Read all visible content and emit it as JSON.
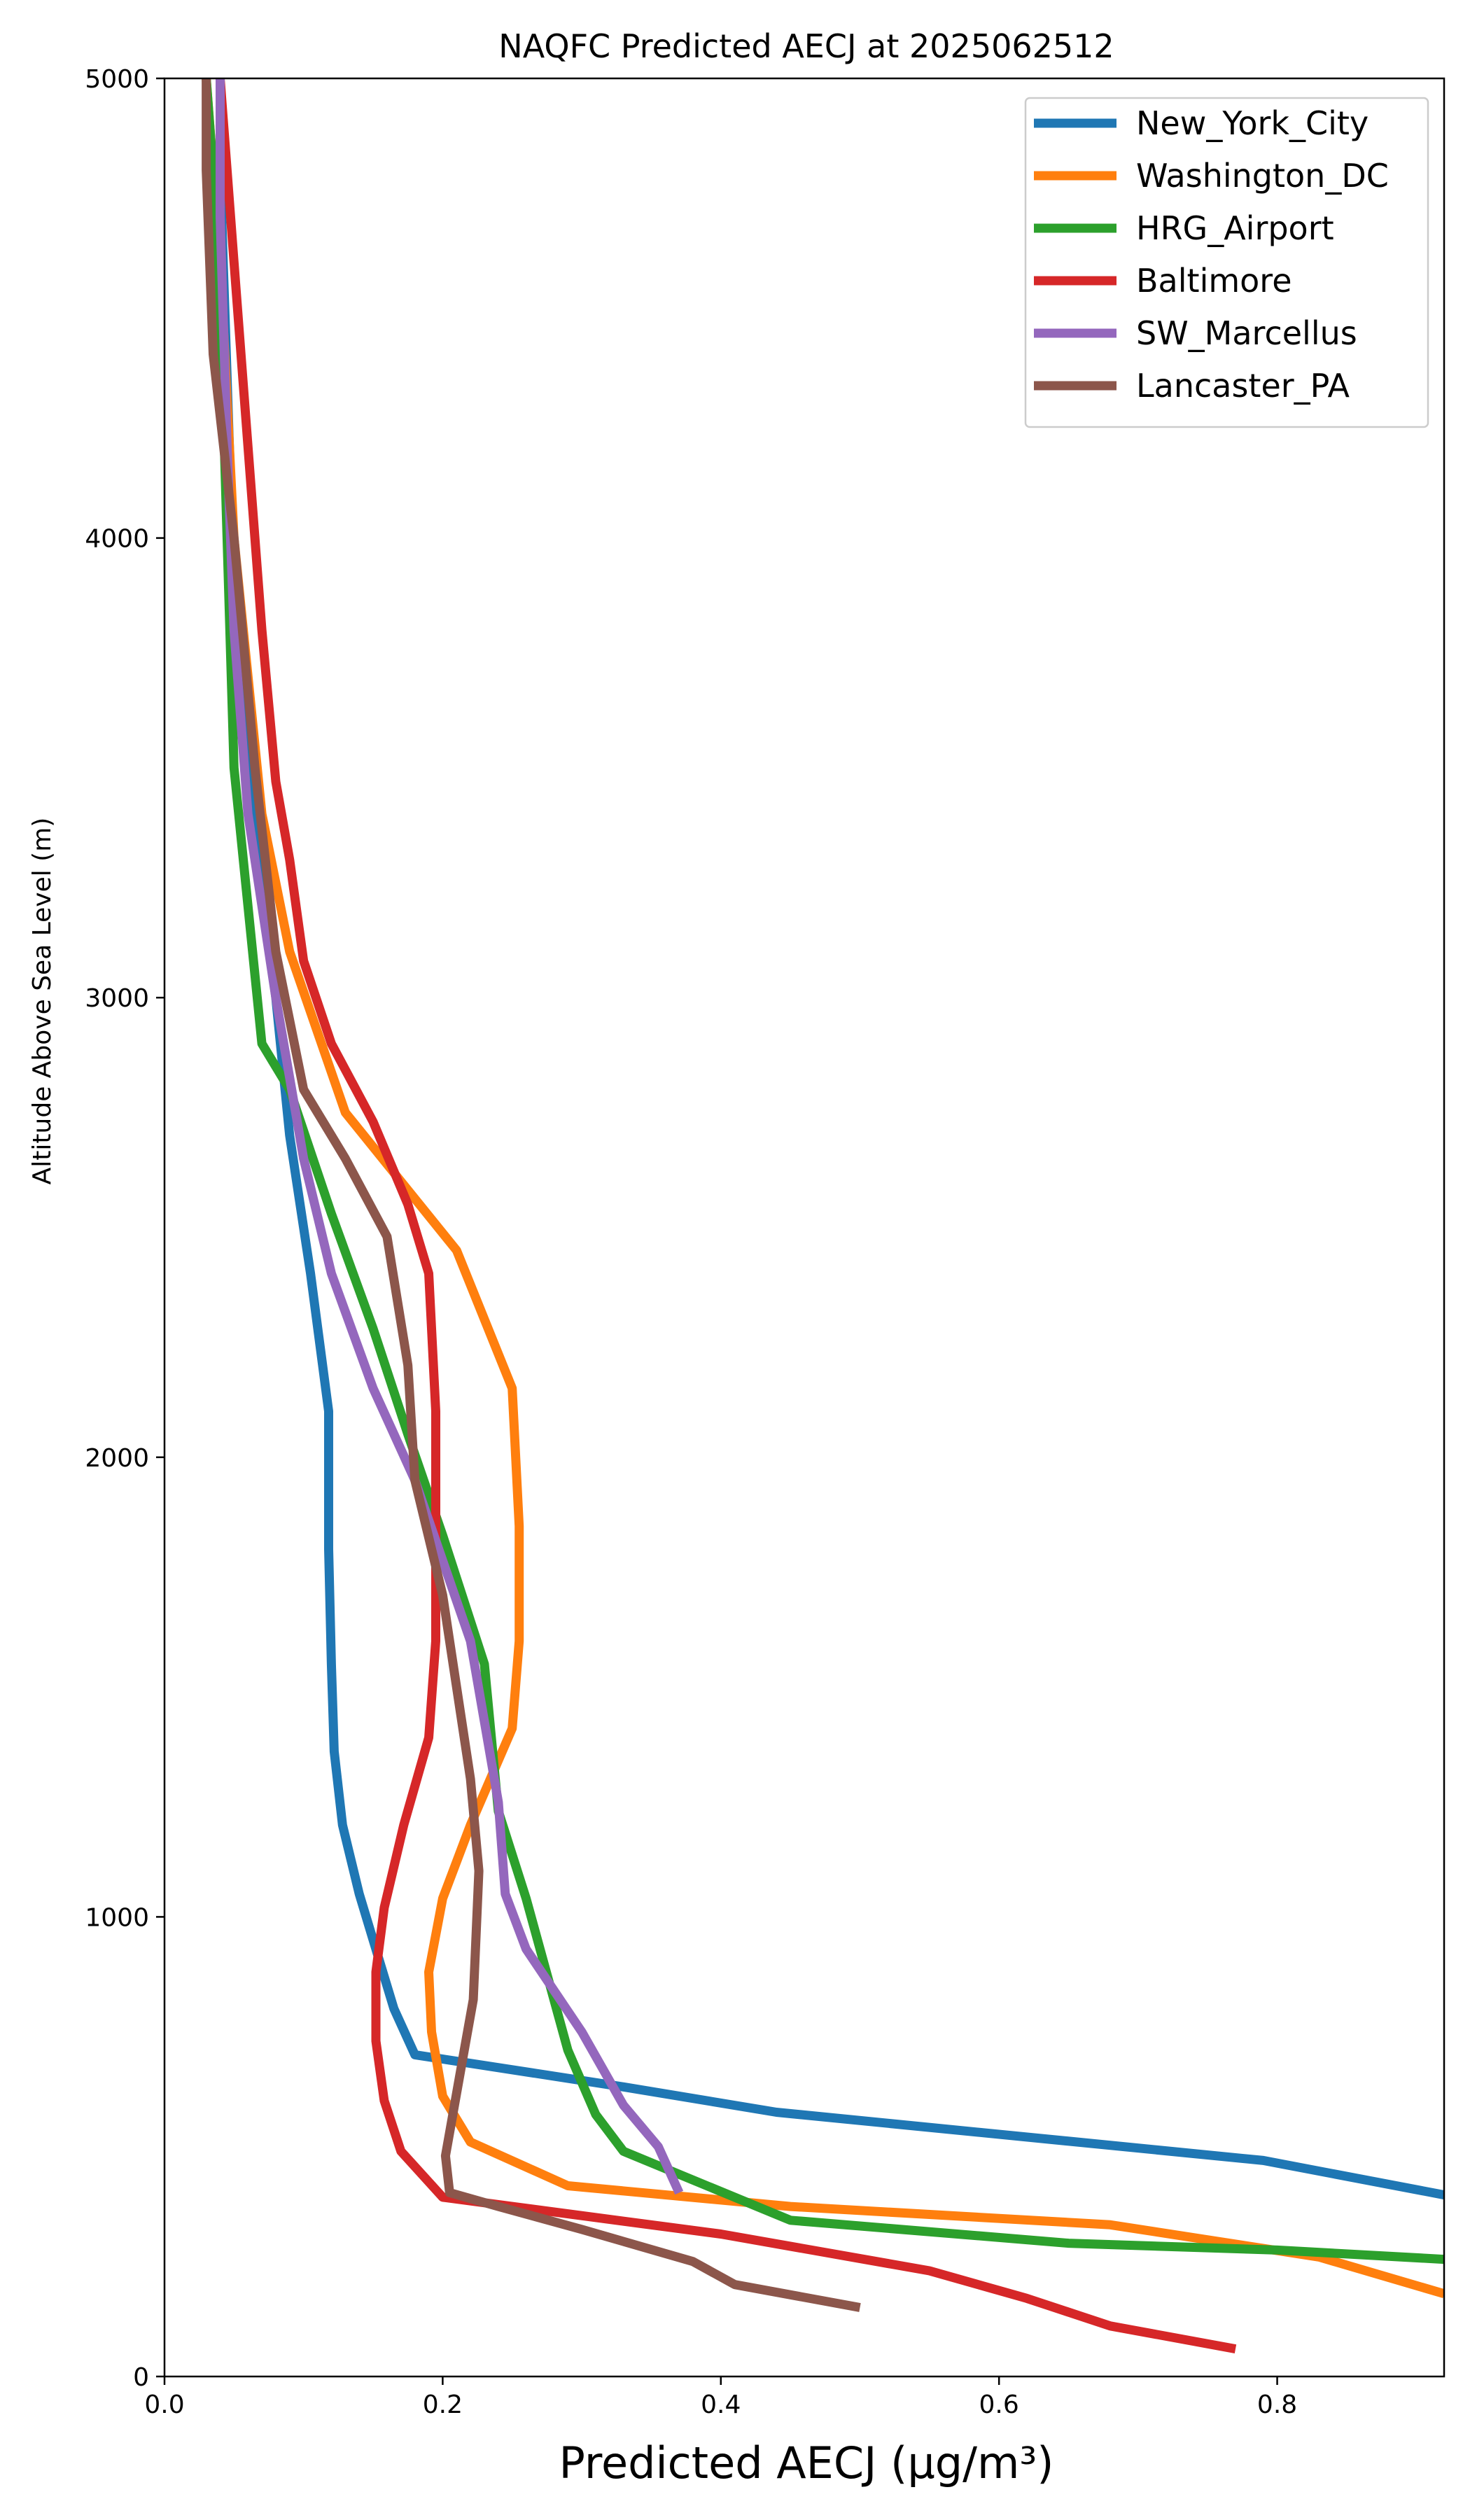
{
  "chart_data": {
    "type": "line",
    "title": "NAQFC Predicted AECJ at 2025062512",
    "xlabel": "Predicted AECJ (μg/m³)",
    "ylabel": "Altitude Above Sea Level (m)",
    "xlim": [
      0.0,
      0.92
    ],
    "ylim": [
      0,
      5000
    ],
    "xticks": [
      "0.0",
      "0.2",
      "0.4",
      "0.6",
      "0.8"
    ],
    "yticks": [
      "0",
      "1000",
      "2000",
      "3000",
      "4000",
      "5000"
    ],
    "grid": false,
    "legend_position": "top-right",
    "series": [
      {
        "name": "New_York_City",
        "color": "#1f77b4",
        "points": [
          [
            0.92,
            395
          ],
          [
            0.79,
            470
          ],
          [
            0.44,
            575
          ],
          [
            0.33,
            630
          ],
          [
            0.18,
            700
          ],
          [
            0.165,
            800
          ],
          [
            0.15,
            950
          ],
          [
            0.14,
            1050
          ],
          [
            0.128,
            1200
          ],
          [
            0.122,
            1360
          ],
          [
            0.12,
            1550
          ],
          [
            0.118,
            1800
          ],
          [
            0.118,
            2100
          ],
          [
            0.105,
            2400
          ],
          [
            0.09,
            2700
          ],
          [
            0.08,
            3000
          ],
          [
            0.06,
            3500
          ],
          [
            0.05,
            3900
          ],
          [
            0.04,
            4800
          ],
          [
            0.04,
            5000
          ]
        ]
      },
      {
        "name": "Washington_DC",
        "color": "#ff7f0e",
        "points": [
          [
            0.92,
            180
          ],
          [
            0.83,
            260
          ],
          [
            0.68,
            330
          ],
          [
            0.45,
            370
          ],
          [
            0.29,
            415
          ],
          [
            0.22,
            510
          ],
          [
            0.2,
            610
          ],
          [
            0.192,
            750
          ],
          [
            0.19,
            880
          ],
          [
            0.2,
            1040
          ],
          [
            0.22,
            1200
          ],
          [
            0.25,
            1410
          ],
          [
            0.255,
            1600
          ],
          [
            0.255,
            1850
          ],
          [
            0.25,
            2150
          ],
          [
            0.21,
            2450
          ],
          [
            0.17,
            2600
          ],
          [
            0.13,
            2750
          ],
          [
            0.09,
            3100
          ],
          [
            0.07,
            3400
          ],
          [
            0.05,
            4000
          ],
          [
            0.04,
            4600
          ],
          [
            0.03,
            5000
          ]
        ]
      },
      {
        "name": "HRG_Airport",
        "color": "#2ca02c",
        "points": [
          [
            0.92,
            255
          ],
          [
            0.8,
            275
          ],
          [
            0.65,
            290
          ],
          [
            0.45,
            340
          ],
          [
            0.33,
            490
          ],
          [
            0.31,
            570
          ],
          [
            0.29,
            710
          ],
          [
            0.26,
            1040
          ],
          [
            0.24,
            1230
          ],
          [
            0.23,
            1550
          ],
          [
            0.2,
            1830
          ],
          [
            0.175,
            2050
          ],
          [
            0.15,
            2280
          ],
          [
            0.12,
            2530
          ],
          [
            0.09,
            2800
          ],
          [
            0.07,
            2900
          ],
          [
            0.06,
            3200
          ],
          [
            0.05,
            3500
          ],
          [
            0.045,
            4000
          ],
          [
            0.04,
            4500
          ],
          [
            0.035,
            4800
          ],
          [
            0.03,
            5000
          ]
        ]
      },
      {
        "name": "Baltimore",
        "color": "#d62728",
        "points": [
          [
            0.77,
            60
          ],
          [
            0.68,
            110
          ],
          [
            0.62,
            170
          ],
          [
            0.55,
            230
          ],
          [
            0.4,
            310
          ],
          [
            0.25,
            370
          ],
          [
            0.2,
            390
          ],
          [
            0.17,
            490
          ],
          [
            0.158,
            600
          ],
          [
            0.152,
            730
          ],
          [
            0.152,
            880
          ],
          [
            0.158,
            1020
          ],
          [
            0.172,
            1200
          ],
          [
            0.19,
            1390
          ],
          [
            0.195,
            1600
          ],
          [
            0.195,
            1850
          ],
          [
            0.195,
            2100
          ],
          [
            0.19,
            2400
          ],
          [
            0.175,
            2550
          ],
          [
            0.15,
            2730
          ],
          [
            0.12,
            2900
          ],
          [
            0.1,
            3080
          ],
          [
            0.09,
            3300
          ],
          [
            0.08,
            3470
          ],
          [
            0.07,
            3800
          ],
          [
            0.06,
            4200
          ],
          [
            0.05,
            4600
          ],
          [
            0.04,
            5000
          ]
        ]
      },
      {
        "name": "SW_Marcellus",
        "color": "#9467bd",
        "points": [
          [
            0.37,
            400
          ],
          [
            0.355,
            500
          ],
          [
            0.33,
            590
          ],
          [
            0.3,
            750
          ],
          [
            0.26,
            930
          ],
          [
            0.245,
            1050
          ],
          [
            0.24,
            1250
          ],
          [
            0.22,
            1600
          ],
          [
            0.18,
            1950
          ],
          [
            0.15,
            2150
          ],
          [
            0.12,
            2400
          ],
          [
            0.1,
            2650
          ],
          [
            0.08,
            3000
          ],
          [
            0.06,
            3400
          ],
          [
            0.05,
            3800
          ],
          [
            0.045,
            4200
          ],
          [
            0.04,
            4700
          ],
          [
            0.04,
            5000
          ]
        ]
      },
      {
        "name": "Lancaster_PA",
        "color": "#8c564b",
        "points": [
          [
            0.5,
            150
          ],
          [
            0.41,
            200
          ],
          [
            0.38,
            250
          ],
          [
            0.3,
            320
          ],
          [
            0.24,
            370
          ],
          [
            0.205,
            400
          ],
          [
            0.202,
            480
          ],
          [
            0.212,
            650
          ],
          [
            0.222,
            820
          ],
          [
            0.226,
            1100
          ],
          [
            0.22,
            1300
          ],
          [
            0.2,
            1700
          ],
          [
            0.18,
            1950
          ],
          [
            0.175,
            2200
          ],
          [
            0.16,
            2480
          ],
          [
            0.13,
            2650
          ],
          [
            0.1,
            2800
          ],
          [
            0.08,
            3100
          ],
          [
            0.065,
            3500
          ],
          [
            0.05,
            4000
          ],
          [
            0.035,
            4400
          ],
          [
            0.03,
            4800
          ],
          [
            0.03,
            5000
          ]
        ]
      }
    ]
  }
}
